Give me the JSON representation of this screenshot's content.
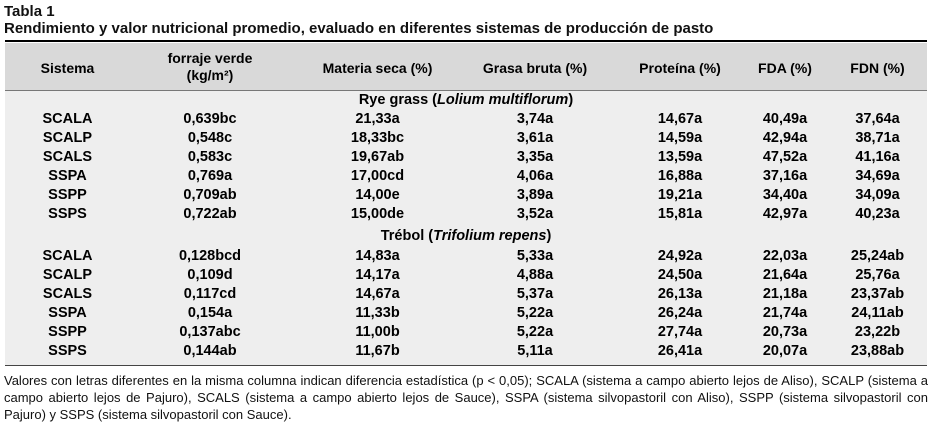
{
  "table": {
    "title": "Tabla 1",
    "subtitle": "Rendimiento y valor nutricional promedio, evaluado en diferentes sistemas de producción de pasto",
    "headers": {
      "sistema": "Sistema",
      "forraje_line1": "forraje verde",
      "forraje_line2": "(kg/m²)",
      "materia": "Materia seca (%)",
      "grasa": "Grasa bruta (%)",
      "proteina": "Proteína (%)",
      "fda": "FDA (%)",
      "fdn": "FDN (%)"
    },
    "sections": [
      {
        "label": "Rye grass (",
        "label_italic": "Lolium multiflorum",
        "label_end": ")",
        "rows": [
          {
            "sistema": "SCALA",
            "forraje": "0,639bc",
            "materia": "21,33a",
            "grasa": "3,74a",
            "proteina": "14,67a",
            "fda": "40,49a",
            "fdn": "37,64a"
          },
          {
            "sistema": "SCALP",
            "forraje": "0,548c",
            "materia": "18,33bc",
            "grasa": "3,61a",
            "proteina": "14,59a",
            "fda": "42,94a",
            "fdn": "38,71a"
          },
          {
            "sistema": "SCALS",
            "forraje": "0,583c",
            "materia": "19,67ab",
            "grasa": "3,35a",
            "proteina": "13,59a",
            "fda": "47,52a",
            "fdn": "41,16a"
          },
          {
            "sistema": "SSPA",
            "forraje": "0,769a",
            "materia": "17,00cd",
            "grasa": "4,06a",
            "proteina": "16,88a",
            "fda": "37,16a",
            "fdn": "34,69a"
          },
          {
            "sistema": "SSPP",
            "forraje": "0,709ab",
            "materia": "14,00e",
            "grasa": "3,89a",
            "proteina": "19,21a",
            "fda": "34,40a",
            "fdn": "34,09a"
          },
          {
            "sistema": "SSPS",
            "forraje": "0,722ab",
            "materia": "15,00de",
            "grasa": "3,52a",
            "proteina": "15,81a",
            "fda": "42,97a",
            "fdn": "40,23a"
          }
        ]
      },
      {
        "label": "Trébol (",
        "label_italic": "Trifolium repens",
        "label_end": ")",
        "rows": [
          {
            "sistema": "SCALA",
            "forraje": "0,128bcd",
            "materia": "14,83a",
            "grasa": "5,33a",
            "proteina": "24,92a",
            "fda": "22,03a",
            "fdn": "25,24ab"
          },
          {
            "sistema": "SCALP",
            "forraje": "0,109d",
            "materia": "14,17a",
            "grasa": "4,88a",
            "proteina": "24,50a",
            "fda": "21,64a",
            "fdn": "25,76a"
          },
          {
            "sistema": "SCALS",
            "forraje": "0,117cd",
            "materia": "14,67a",
            "grasa": "5,37a",
            "proteina": "26,13a",
            "fda": "21,18a",
            "fdn": "23,37ab"
          },
          {
            "sistema": "SSPA",
            "forraje": "0,154a",
            "materia": "11,33b",
            "grasa": "5,22a",
            "proteina": "26,24a",
            "fda": "21,74a",
            "fdn": "24,11ab"
          },
          {
            "sistema": "SSPP",
            "forraje": "0,137abc",
            "materia": "11,00b",
            "grasa": "5,22a",
            "proteina": "27,74a",
            "fda": "20,73a",
            "fdn": "23,22b"
          },
          {
            "sistema": "SSPS",
            "forraje": "0,144ab",
            "materia": "11,67b",
            "grasa": "5,11a",
            "proteina": "26,41a",
            "fda": "20,07a",
            "fdn": "23,88ab"
          }
        ]
      }
    ],
    "footnote": "Valores con letras diferentes en la misma columna indican diferencia estadística (p < 0,05); SCALA (sistema a campo abierto lejos de Aliso), SCALP (sistema a campo abierto lejos de Pajuro), SCALS (sistema a campo abierto lejos de Sauce), SSPA (sistema silvopastoril con Aliso), SSPP (sistema silvopastoril con Pajuro) y SSPS (sistema silvopastoril con Sauce)."
  }
}
